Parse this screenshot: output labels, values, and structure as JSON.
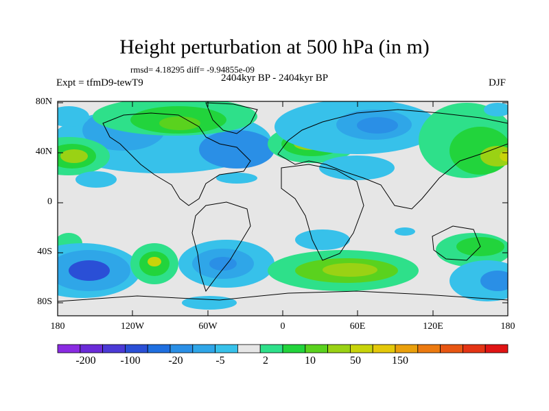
{
  "title": "Height perturbation at 500 hPa (in m)",
  "stats": "rmsd= 4.18295 diff= -9.94855e-09",
  "subtitle": "2404kyr BP - 2404kyr BP",
  "experiment": "Expt = tfmD9-tewT9",
  "season": "DJF",
  "lat_labels": [
    "80N",
    "40N",
    "0",
    "40S",
    "80S"
  ],
  "lon_labels": [
    "180",
    "120W",
    "60W",
    "0",
    "60E",
    "120E",
    "180"
  ],
  "colorbar": {
    "labels": [
      "-200",
      "-100",
      "-20",
      "-5",
      "2",
      "10",
      "50",
      "150"
    ],
    "colors": [
      "#8a2be2",
      "#6a2bd8",
      "#4b3ad6",
      "#2a4fd6",
      "#1f6fe0",
      "#2a8fe6",
      "#2fa6e8",
      "#37c1ea",
      "#e6e6e6",
      "#2ee08a",
      "#22d43c",
      "#5ad21e",
      "#9ad214",
      "#c8d40a",
      "#e4c80a",
      "#eaa00c",
      "#ec7a10",
      "#e85612",
      "#e43414",
      "#e01414"
    ]
  },
  "colors": {
    "background": "#ffffff",
    "land_gray": "#e6e6e6",
    "coast": "#000000"
  }
}
